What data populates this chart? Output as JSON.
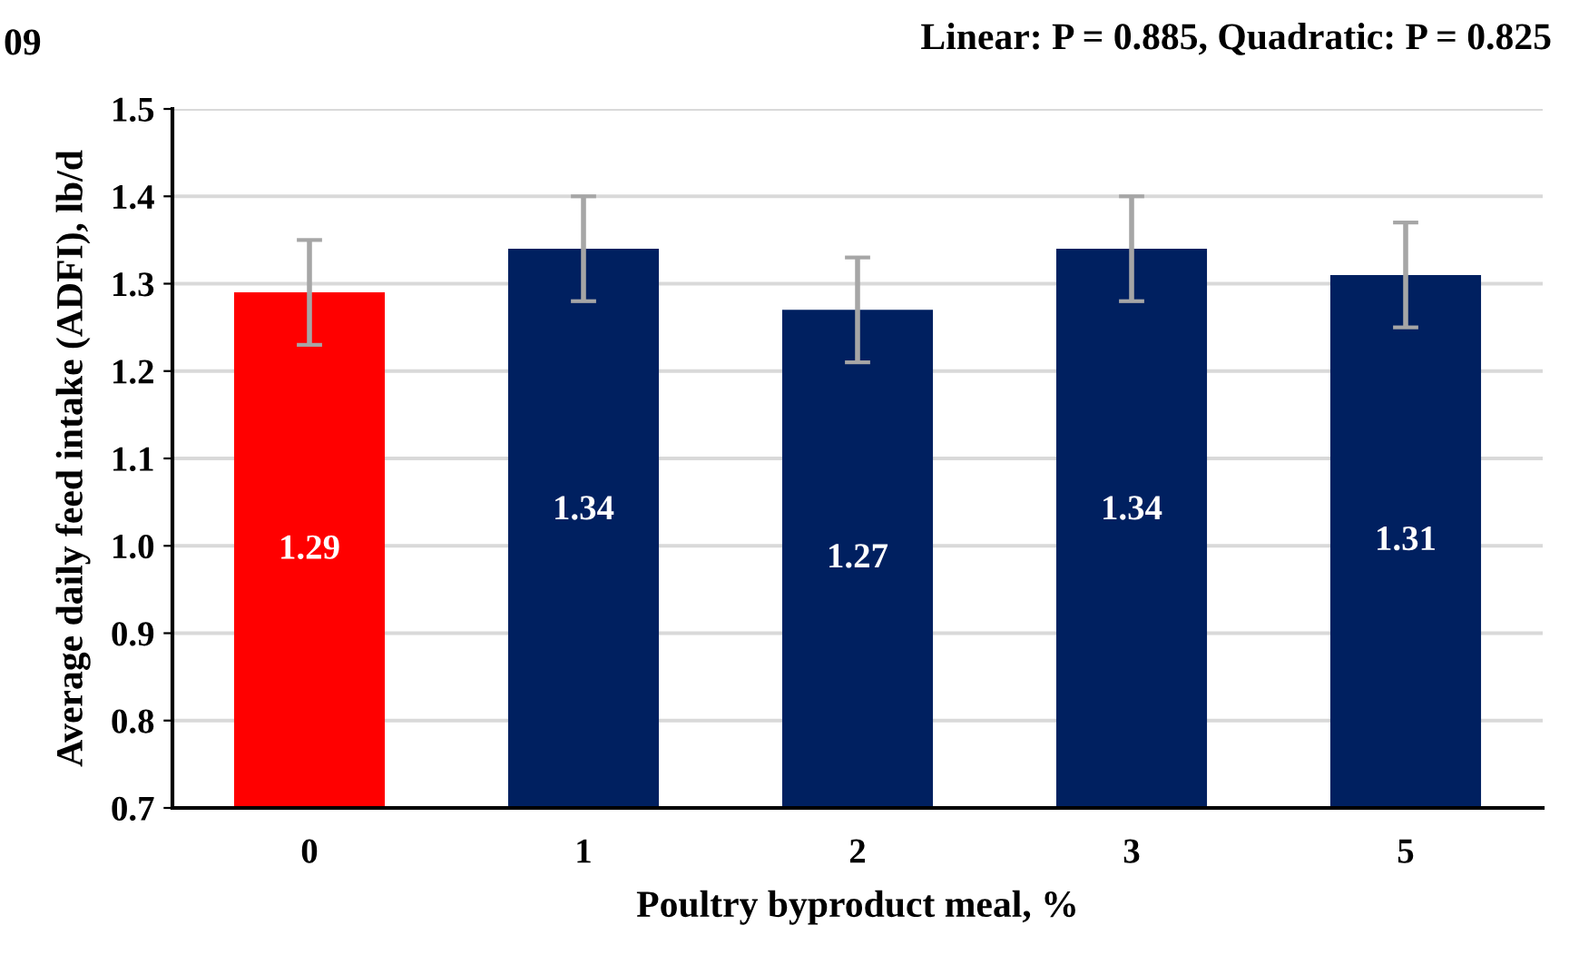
{
  "chart_data": {
    "type": "bar",
    "categories": [
      "0",
      "1",
      "2",
      "3",
      "5"
    ],
    "values": [
      1.29,
      1.34,
      1.27,
      1.34,
      1.31
    ],
    "colors": [
      "#ff0000",
      "#002060",
      "#002060",
      "#002060",
      "#002060"
    ],
    "errors": [
      0.06,
      0.06,
      0.06,
      0.06,
      0.06
    ],
    "data_labels": true,
    "xlabel": "Poultry byproduct meal, %",
    "ylabel": "Average daily feed intake (ADFI), lb/d",
    "ylim": [
      0.7,
      1.5
    ],
    "yticks": [
      {
        "value": 0.7,
        "label": "0.7"
      },
      {
        "value": 0.8,
        "label": "0.8"
      },
      {
        "value": 0.9,
        "label": "0.9"
      },
      {
        "value": 1.0,
        "label": "1.0"
      },
      {
        "value": 1.1,
        "label": "1.1"
      },
      {
        "value": 1.2,
        "label": "1.2"
      },
      {
        "value": 1.3,
        "label": "1.3"
      },
      {
        "value": 1.4,
        "label": "1.4"
      },
      {
        "value": 1.5,
        "label": "1.5"
      }
    ],
    "grid": "y",
    "annotations": [
      "Linear: P = 0.885, Quadratic: P = 0.825",
      "09"
    ]
  }
}
